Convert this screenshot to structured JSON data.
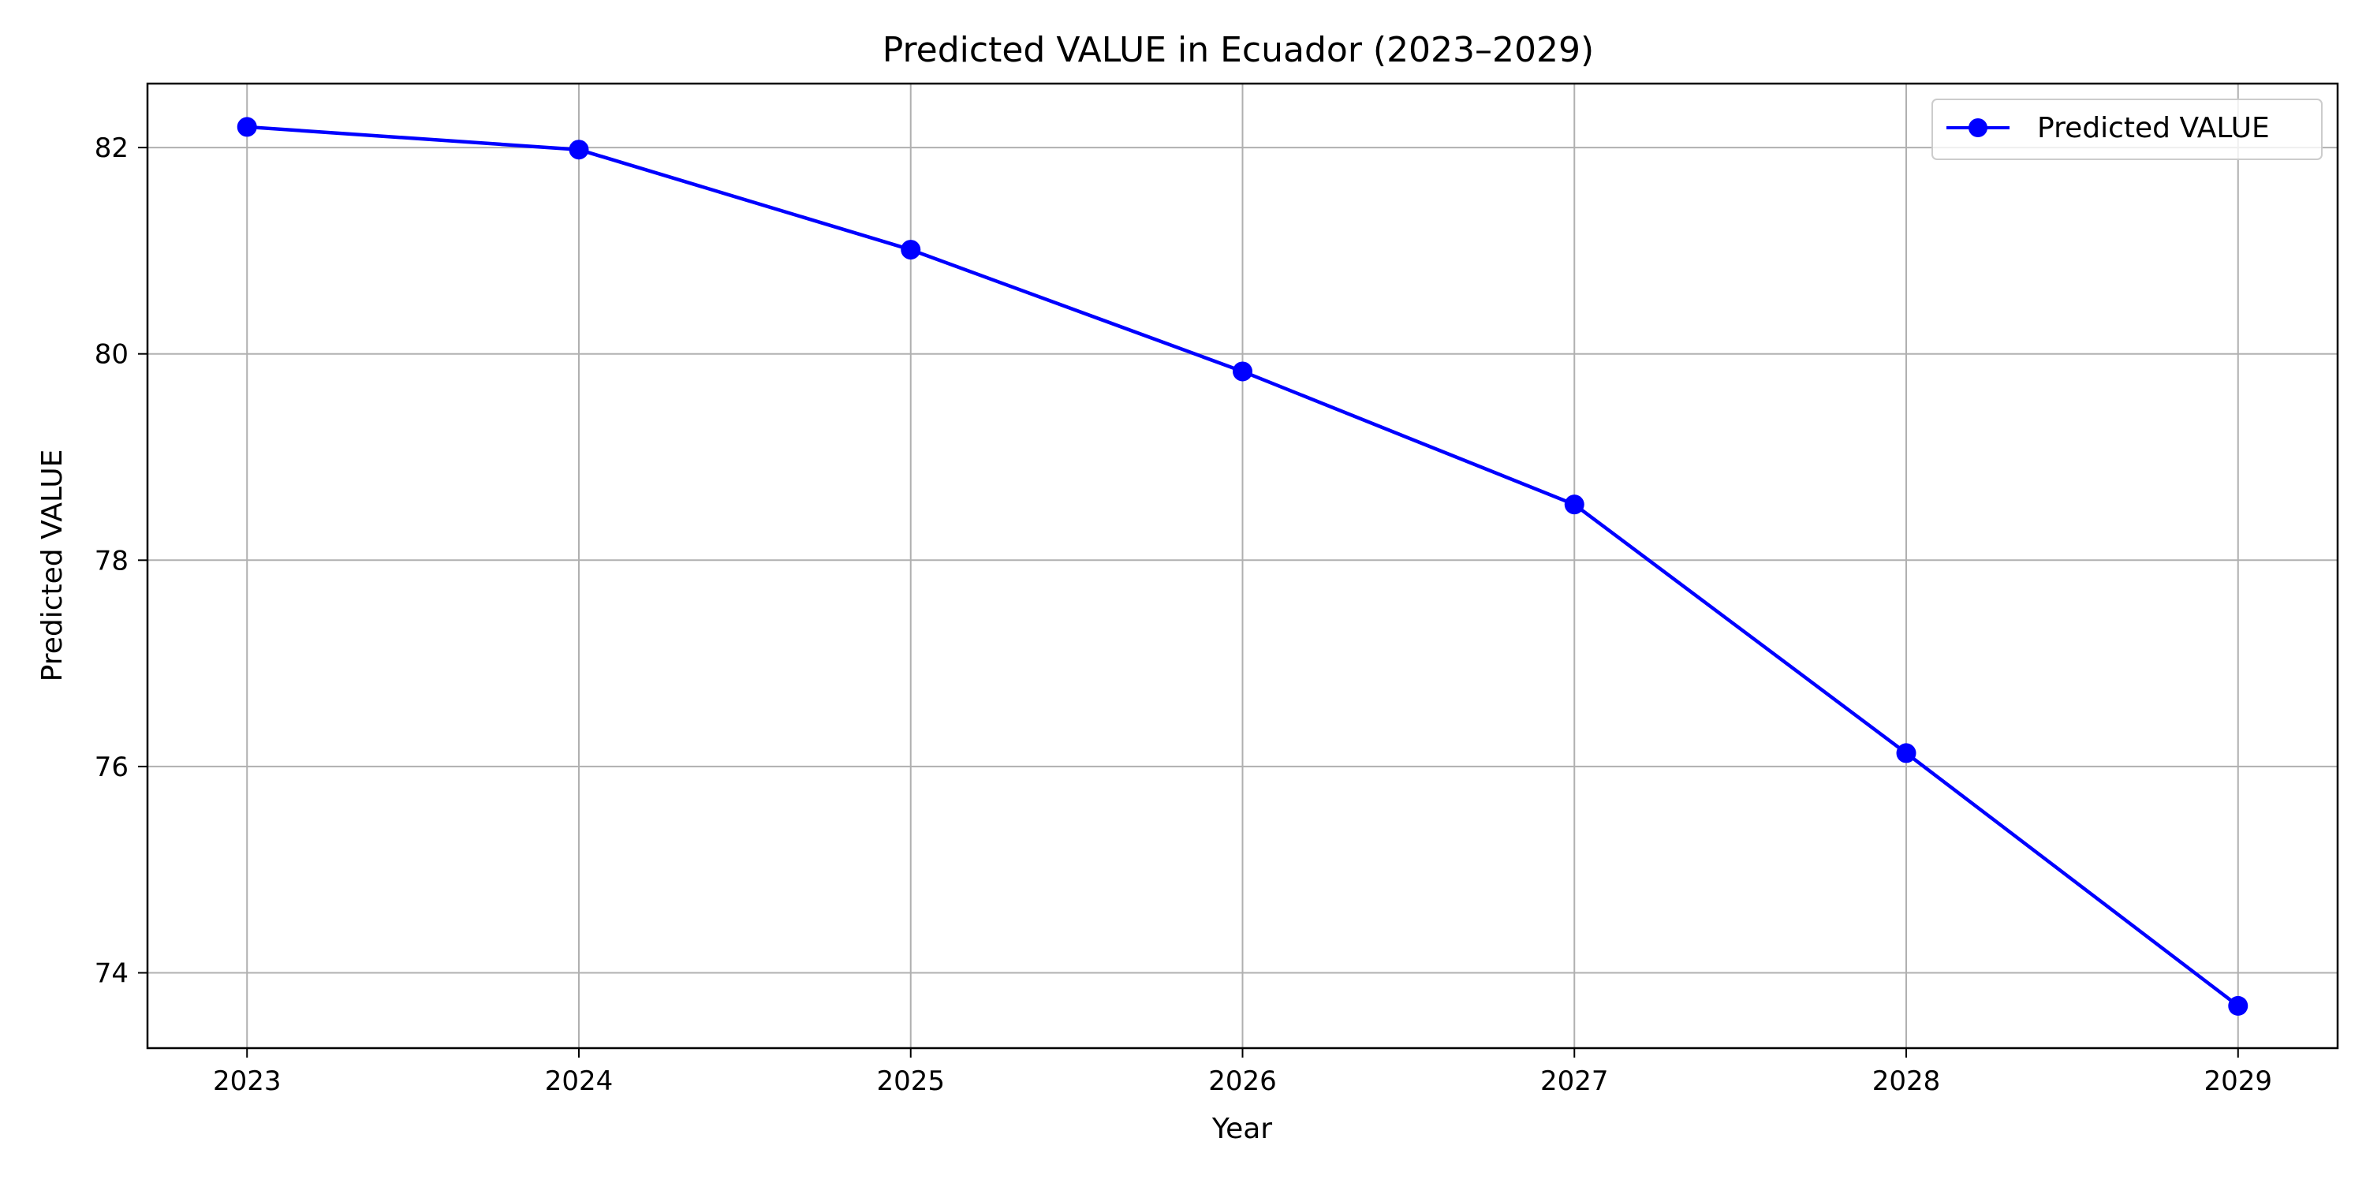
{
  "chart_data": {
    "type": "line",
    "title": "Predicted VALUE in Ecuador (2023–2029)",
    "xlabel": "Year",
    "ylabel": "Predicted VALUE",
    "x": [
      2023,
      2024,
      2025,
      2026,
      2027,
      2028,
      2029
    ],
    "x_tick_labels": [
      "2023",
      "2024",
      "2025",
      "2026",
      "2027",
      "2028",
      "2029"
    ],
    "y_ticks": [
      74,
      76,
      78,
      80,
      82
    ],
    "y_tick_labels": [
      "74",
      "76",
      "78",
      "80",
      "82"
    ],
    "xlim": [
      2022.7,
      2029.3
    ],
    "ylim": [
      73.27,
      82.62
    ],
    "grid": true,
    "legend_position": "top-right",
    "series": [
      {
        "name": "Predicted VALUE",
        "color": "#0000ff",
        "marker": "circle",
        "values": [
          82.2,
          81.98,
          81.01,
          79.83,
          78.54,
          76.13,
          73.68
        ]
      }
    ]
  }
}
